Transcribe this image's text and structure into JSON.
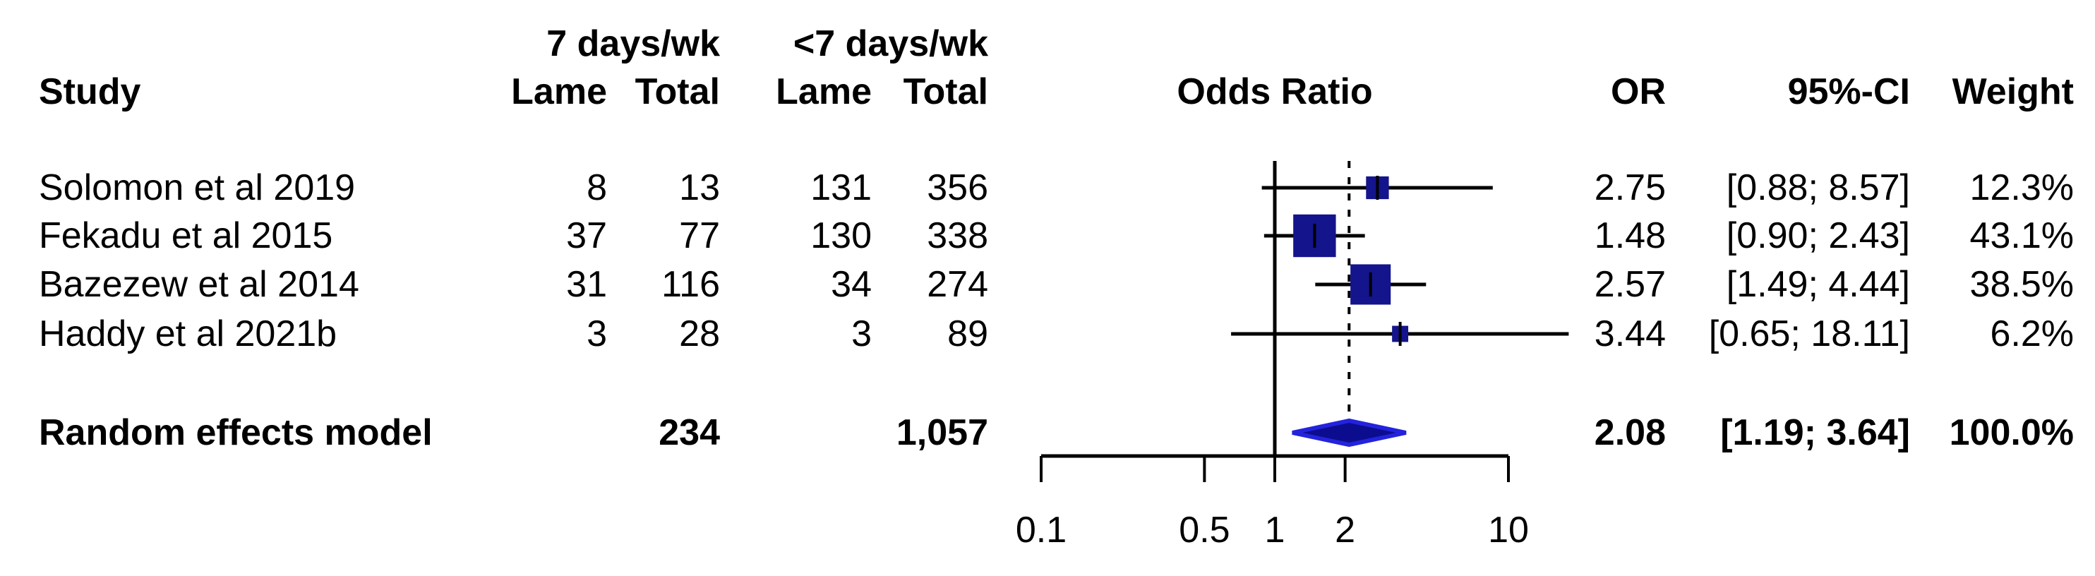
{
  "columns": {
    "study": "Study",
    "group1": "7 days/wk",
    "group2": "<7 days/wk",
    "lame1": "Lame",
    "total1": "Total",
    "lame2": "Lame",
    "total2": "Total",
    "plot": "Odds Ratio",
    "or": "OR",
    "ci": "95%-CI",
    "weight": "Weight"
  },
  "rows": [
    {
      "study": "Solomon et al 2019",
      "lame_7": "8",
      "total_7": "13",
      "lame_lt7": "131",
      "total_lt7": "356",
      "or": "2.75",
      "ci": "[0.88; 8.57]",
      "weight": "12.3%"
    },
    {
      "study": "Fekadu et al 2015",
      "lame_7": "37",
      "total_7": "77",
      "lame_lt7": "130",
      "total_lt7": "338",
      "or": "1.48",
      "ci": "[0.90; 2.43]",
      "weight": "43.1%"
    },
    {
      "study": "Bazezew et al 2014",
      "lame_7": "31",
      "total_7": "116",
      "lame_lt7": "34",
      "total_lt7": "274",
      "or": "2.57",
      "ci": "[1.49; 4.44]",
      "weight": "38.5%"
    },
    {
      "study": "Haddy et al 2021b",
      "lame_7": "3",
      "total_7": "28",
      "lame_lt7": "3",
      "total_lt7": "89",
      "or": "3.44",
      "ci": "[0.65; 18.11]",
      "weight": "6.2%"
    }
  ],
  "summary": {
    "label": "Random effects model",
    "total_7": "234",
    "total_lt7": "1,057",
    "or": "2.08",
    "ci": "[1.19; 3.64]",
    "weight": "100.0%"
  },
  "chart_data": {
    "type": "forest",
    "x_scale": "log10",
    "x_range": [
      0.1,
      10
    ],
    "x_ticks": [
      0.1,
      0.5,
      1,
      2,
      10
    ],
    "x_tick_labels": [
      "0.1",
      "0.5",
      "1",
      "2",
      "10"
    ],
    "reference_line": 1,
    "pooled_dotted_line": 2.08,
    "studies": [
      {
        "name": "Solomon et al 2019",
        "or": 2.75,
        "ci_low": 0.88,
        "ci_high": 8.57,
        "weight_pct": 12.3
      },
      {
        "name": "Fekadu et al 2015",
        "or": 1.48,
        "ci_low": 0.9,
        "ci_high": 2.43,
        "weight_pct": 43.1
      },
      {
        "name": "Bazezew et al 2014",
        "or": 2.57,
        "ci_low": 1.49,
        "ci_high": 4.44,
        "weight_pct": 38.5
      },
      {
        "name": "Haddy et al 2021b",
        "or": 3.44,
        "ci_low": 0.65,
        "ci_high": 18.11,
        "weight_pct": 6.2
      }
    ],
    "summary": {
      "name": "Random effects model",
      "or": 2.08,
      "ci_low": 1.19,
      "ci_high": 3.64,
      "weight_pct": 100.0
    },
    "colors": {
      "square": "#14148c",
      "diamond_fill": "#0c0c8e",
      "diamond_border": "#2323dd",
      "line": "#000000"
    },
    "legend_position": "none",
    "grid": false
  }
}
